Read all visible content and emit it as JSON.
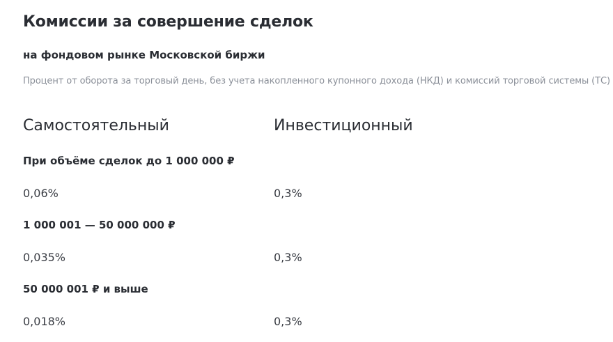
{
  "title": "Комиссии за совершение сделок",
  "subtitle": "на фондовом рынке Московской биржи",
  "note": "Процент от оборота за торговый день, без учета накопленного купонного дохода (НКД) и комиссий торговой системы (ТС)",
  "columns": [
    "Самостоятельный",
    "Инвестиционный"
  ],
  "tiers": [
    {
      "label": "При объёме сделок до 1 000 000 ₽",
      "values": [
        "0,06%",
        "0,3%"
      ]
    },
    {
      "label": "1 000 001 — 50 000 000 ₽",
      "values": [
        "0,035%",
        "0,3%"
      ]
    },
    {
      "label": "50 000 001 ₽ и выше",
      "values": [
        "0,018%",
        "0,3%"
      ]
    }
  ]
}
